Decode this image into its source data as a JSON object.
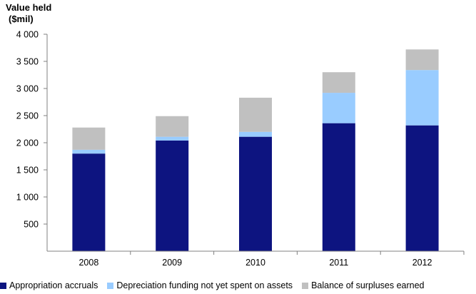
{
  "chart_data": {
    "type": "bar",
    "stacked": true,
    "ylabel_lines": [
      "Value held",
      "($mil)"
    ],
    "xlabel": "",
    "categories": [
      "2008",
      "2009",
      "2010",
      "2011",
      "2012"
    ],
    "ylim": [
      0,
      4000
    ],
    "yticks": [
      500,
      1000,
      1500,
      2000,
      2500,
      3000,
      3500,
      4000
    ],
    "ytick_labels": [
      "500",
      "1 000",
      "1 500",
      "2 000",
      "2 500",
      "3 000",
      "3 500",
      "4 000"
    ],
    "grid": false,
    "legend_position": "bottom",
    "series": [
      {
        "name": "Appropriation accruals",
        "color": "#0d1480",
        "values": [
          1800,
          2040,
          2110,
          2360,
          2320
        ]
      },
      {
        "name": "Depreciation funding not yet spent on assets",
        "color": "#99ccff",
        "values": [
          70,
          70,
          90,
          560,
          1020
        ]
      },
      {
        "name": "Balance of surpluses earned",
        "color": "#c0c0c0",
        "values": [
          410,
          380,
          630,
          380,
          380
        ]
      }
    ]
  }
}
